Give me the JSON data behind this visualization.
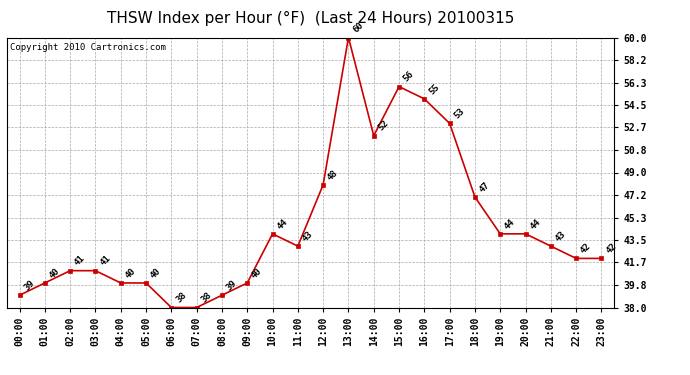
{
  "title": "THSW Index per Hour (°F)  (Last 24 Hours) 20100315",
  "copyright": "Copyright 2010 Cartronics.com",
  "hours": [
    "00:00",
    "01:00",
    "02:00",
    "03:00",
    "04:00",
    "05:00",
    "06:00",
    "07:00",
    "08:00",
    "09:00",
    "10:00",
    "11:00",
    "12:00",
    "13:00",
    "14:00",
    "15:00",
    "16:00",
    "17:00",
    "18:00",
    "19:00",
    "20:00",
    "21:00",
    "22:00",
    "23:00"
  ],
  "values": [
    39,
    40,
    41,
    41,
    40,
    40,
    38,
    38,
    39,
    40,
    44,
    43,
    48,
    60,
    52,
    56,
    55,
    53,
    47,
    44,
    44,
    43,
    42,
    42
  ],
  "line_color": "#cc0000",
  "marker_color": "#cc0000",
  "bg_color": "#ffffff",
  "grid_color": "#aaaaaa",
  "ylim_min": 38.0,
  "ylim_max": 60.0,
  "yticks": [
    38.0,
    39.8,
    41.7,
    43.5,
    45.3,
    47.2,
    49.0,
    50.8,
    52.7,
    54.5,
    56.3,
    58.2,
    60.0
  ],
  "title_fontsize": 11,
  "label_fontsize": 6.5,
  "tick_fontsize": 7,
  "copyright_fontsize": 6.5
}
